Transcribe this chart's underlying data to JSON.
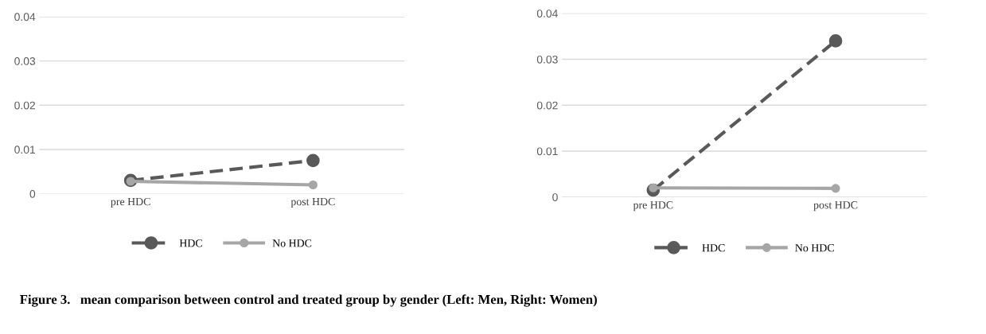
{
  "chart_data": [
    {
      "type": "line",
      "categories": [
        "pre HDC",
        "post HDC"
      ],
      "ylim": [
        0,
        0.04
      ],
      "yticks": [
        0,
        0.01,
        0.02,
        0.03,
        0.04
      ],
      "grid": "y",
      "legend": "bottom",
      "marker": "circle",
      "series": [
        {
          "name": "HDC",
          "color": "#595959",
          "line_style": "dashed",
          "values": [
            0.003,
            0.0075
          ]
        },
        {
          "name": "No HDC",
          "color": "#a6a6a6",
          "line_style": "solid",
          "values": [
            0.0028,
            0.002
          ]
        }
      ],
      "annotations": [
        "Figure 3.   mean comparison between control and treated group by gender (Left: Men, Right: Women)"
      ]
    },
    {
      "type": "line",
      "categories": [
        "pre HDC",
        "post HDC"
      ],
      "ylim": [
        0,
        0.04
      ],
      "yticks": [
        0,
        0.01,
        0.02,
        0.03,
        0.04
      ],
      "grid": "y",
      "legend": "bottom",
      "marker": "circle",
      "series": [
        {
          "name": "HDC",
          "color": "#595959",
          "line_style": "dashed",
          "values": [
            0.0015,
            0.034
          ]
        },
        {
          "name": "No HDC",
          "color": "#a6a6a6",
          "line_style": "solid",
          "values": [
            0.002,
            0.0019
          ]
        }
      ]
    }
  ]
}
